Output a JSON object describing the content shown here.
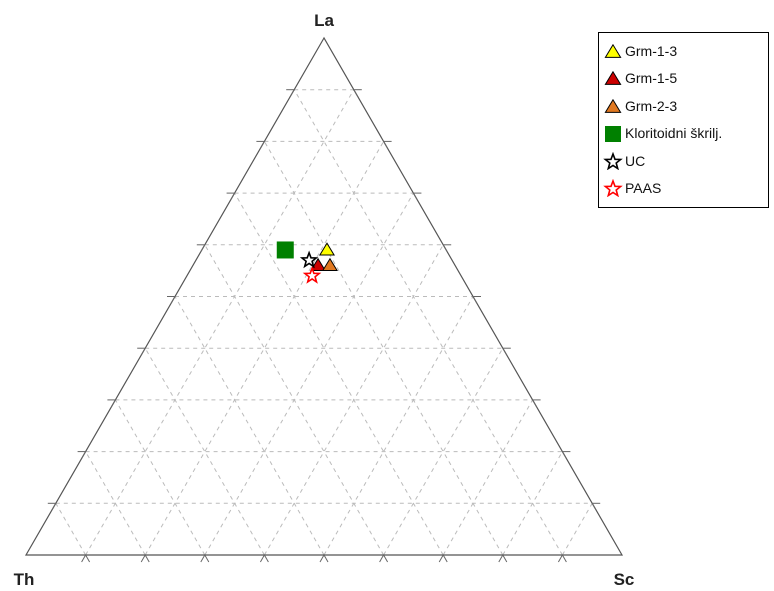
{
  "chart_data": {
    "type": "ternary-scatter",
    "vertices": {
      "top": "La",
      "left": "Th",
      "right": "Sc"
    },
    "grid": true,
    "grid_divisions": 10,
    "legend_position": "top-right",
    "series": [
      {
        "name": "Grm-1-3",
        "marker": "triangle",
        "color": "#ffff00",
        "points": [
          {
            "La": 0.59,
            "Th": 0.2,
            "Sc": 0.21
          }
        ]
      },
      {
        "name": "Grm-1-5",
        "marker": "triangle",
        "color": "#cc0000",
        "points": [
          {
            "La": 0.56,
            "Th": 0.23,
            "Sc": 0.21
          }
        ]
      },
      {
        "name": "Grm-2-3",
        "marker": "triangle",
        "color": "#e07820",
        "points": [
          {
            "La": 0.56,
            "Th": 0.21,
            "Sc": 0.23
          }
        ]
      },
      {
        "name": "Kloritoidni škrilj.",
        "marker": "square",
        "color": "#008000",
        "points": [
          {
            "La": 0.59,
            "Th": 0.27,
            "Sc": 0.14
          }
        ]
      },
      {
        "name": "UC",
        "marker": "star",
        "color": "#000000",
        "points": [
          {
            "La": 0.57,
            "Th": 0.24,
            "Sc": 0.19
          }
        ]
      },
      {
        "name": "PAAS",
        "marker": "star",
        "color": "#ff0000",
        "points": [
          {
            "La": 0.54,
            "Th": 0.25,
            "Sc": 0.21
          }
        ]
      }
    ]
  }
}
